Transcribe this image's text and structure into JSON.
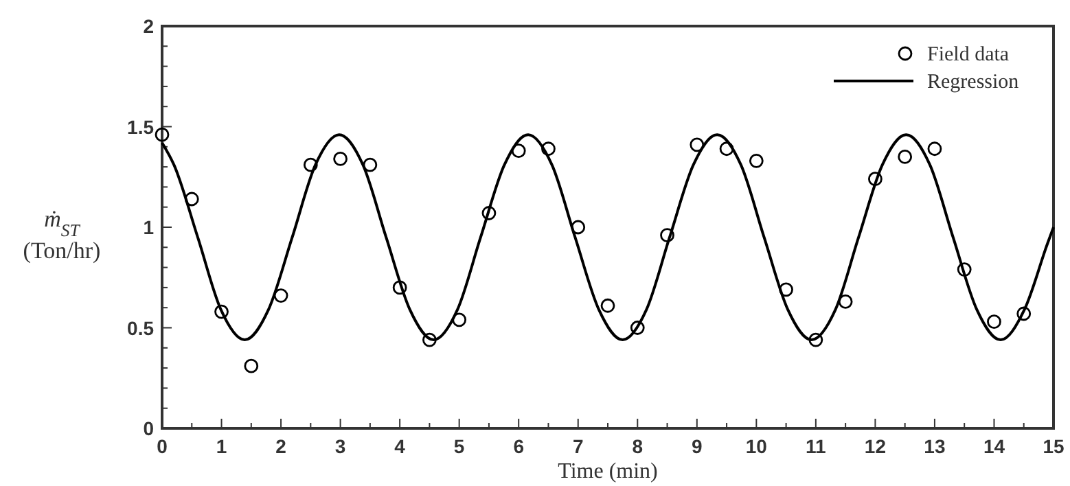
{
  "chart_data": {
    "type": "scatter",
    "xlabel": "Time (min)",
    "ylabel": "ṁ$_{ST}$ (Ton/hr)",
    "xlim": [
      0,
      15
    ],
    "ylim": [
      0,
      2
    ],
    "xticks": [
      0,
      {
        "value": 0.5,
        "label": null
      },
      1,
      {
        "value": 1.5,
        "label": null
      },
      2,
      {
        "value": 2.5,
        "label": null
      },
      3,
      {
        "value": 3.5,
        "label": null
      },
      4,
      {
        "value": 4.5,
        "label": null
      },
      5,
      {
        "value": 5.5,
        "label": null
      },
      6,
      {
        "value": 6.5,
        "label": null
      },
      7,
      {
        "value": 7.5,
        "label": null
      },
      8,
      {
        "value": 8.5,
        "label": null
      },
      9,
      {
        "value": 9.5,
        "label": null
      },
      10,
      {
        "value": 10.5,
        "label": null
      },
      11,
      {
        "value": 11.5,
        "label": null
      },
      12,
      {
        "value": 12.5,
        "label": null
      },
      13,
      {
        "value": 13.5,
        "label": null
      },
      14,
      {
        "value": 14.5,
        "label": null
      },
      15
    ],
    "yticks": [
      0,
      {
        "value": 0.1,
        "label": null
      },
      {
        "value": 0.2,
        "label": null
      },
      {
        "value": 0.3,
        "label": null
      },
      {
        "value": 0.4,
        "label": null
      },
      0.5,
      {
        "value": 0.6,
        "label": null
      },
      {
        "value": 0.7,
        "label": null
      },
      {
        "value": 0.8,
        "label": null
      },
      {
        "value": 0.9,
        "label": null
      },
      1,
      {
        "value": 1.1,
        "label": null
      },
      {
        "value": 1.2,
        "label": null
      },
      {
        "value": 1.3,
        "label": null
      },
      {
        "value": 1.4,
        "label": null
      },
      1.5,
      {
        "value": 1.6,
        "label": null
      },
      {
        "value": 1.7,
        "label": null
      },
      {
        "value": 1.8,
        "label": null
      },
      {
        "value": 1.9,
        "label": null
      },
      2
    ],
    "grid": false,
    "legend": "top right",
    "series": [
      {
        "name": "Field data",
        "marker": "circle",
        "color": "#000000",
        "x": [
          0,
          0.5,
          1,
          1.5,
          2,
          2.5,
          3,
          3.5,
          4,
          4.5,
          5,
          5.5,
          6,
          6.5,
          7,
          7.5,
          8,
          8.5,
          9,
          9.5,
          10,
          10.5,
          11,
          11.5,
          12,
          12.5,
          13,
          13.5,
          14,
          14.5
        ],
        "values": [
          1.46,
          1.14,
          0.58,
          0.31,
          0.66,
          1.31,
          1.34,
          1.31,
          0.7,
          0.44,
          0.54,
          1.07,
          1.38,
          1.39,
          1.0,
          0.61,
          0.5,
          0.96,
          1.41,
          1.39,
          1.33,
          0.69,
          0.44,
          0.63,
          1.24,
          1.35,
          1.39,
          0.79,
          0.53,
          0.57
        ]
      },
      {
        "name": "Regression",
        "type": "line",
        "marker": "none",
        "line_style": "solid",
        "color": "#000000",
        "x": [
          0,
          0.2,
          0.6,
          0.99,
          1.39,
          1.79,
          2.19,
          2.58,
          2.98,
          3.38,
          3.77,
          4.17,
          4.57,
          4.97,
          5.36,
          5.76,
          6.16,
          6.56,
          6.95,
          7.35,
          7.75,
          8.15,
          8.54,
          8.94,
          9.34,
          9.74,
          10.13,
          10.53,
          10.93,
          11.33,
          11.72,
          12.12,
          12.52,
          12.92,
          13.31,
          13.71,
          14.11,
          14.51,
          14.9,
          15
        ],
        "values": [
          1.42,
          1.31,
          0.95,
          0.59,
          0.44,
          0.59,
          0.95,
          1.31,
          1.46,
          1.31,
          0.95,
          0.59,
          0.44,
          0.59,
          0.95,
          1.31,
          1.46,
          1.31,
          0.95,
          0.59,
          0.44,
          0.59,
          0.95,
          1.31,
          1.46,
          1.31,
          0.95,
          0.59,
          0.44,
          0.59,
          0.95,
          1.31,
          1.46,
          1.31,
          0.95,
          0.59,
          0.44,
          0.59,
          0.92,
          1.0
        ]
      }
    ]
  }
}
